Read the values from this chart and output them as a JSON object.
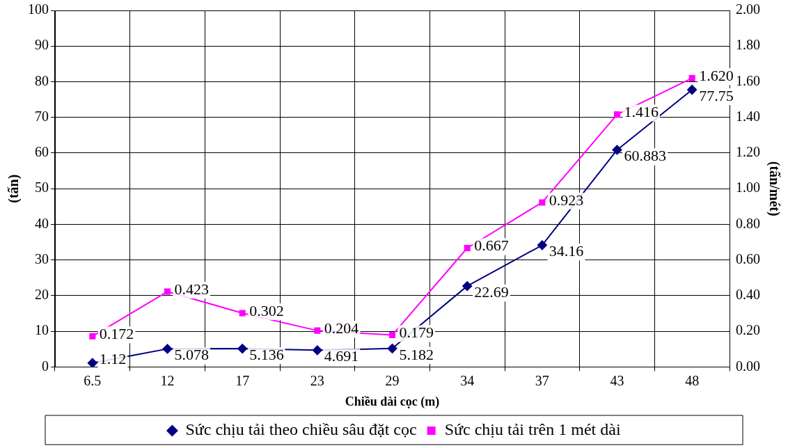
{
  "chart_data": {
    "type": "line",
    "xlabel": "Chiều dài cọc (m)",
    "ylabel": "(tấn)",
    "y2label": "(tấn/mét)",
    "categories": [
      "6.5",
      "12",
      "17",
      "23",
      "29",
      "34",
      "37",
      "43",
      "48"
    ],
    "series": [
      {
        "name": "Sức chịu tải theo chiều sâu đặt cọc",
        "color": "#000080",
        "marker": "diamond",
        "values": [
          1.12,
          5.078,
          5.136,
          4.691,
          5.182,
          22.69,
          34.16,
          60.883,
          77.75
        ],
        "value_labels": [
          "1.12",
          "5.078",
          "5.136",
          "4.691",
          "5.182",
          "22.69",
          "34.16",
          "60.883",
          "77.75"
        ]
      },
      {
        "name": "Sức chịu tải trên 1 mét dài",
        "color": "#ff00ff",
        "marker": "square",
        "axis": "y2",
        "values": [
          0.172,
          0.423,
          0.302,
          0.204,
          0.179,
          0.667,
          0.923,
          1.416,
          1.62
        ],
        "value_labels": [
          "0.172",
          "0.423",
          "0.302",
          "0.204",
          "0.179",
          "0.667",
          "0.923",
          "1.416",
          "1.620"
        ]
      }
    ],
    "ylim": [
      0,
      100
    ],
    "yticks": [
      0,
      10,
      20,
      30,
      40,
      50,
      60,
      70,
      80,
      90,
      100
    ],
    "y2lim": [
      0,
      2
    ],
    "y2ticks": [
      {
        "value": 0,
        "label": "0.00"
      },
      {
        "value": 0.2,
        "label": "0.20"
      },
      {
        "value": 0.4,
        "label": "0.40"
      },
      {
        "value": 0.6,
        "label": "0.60"
      },
      {
        "value": 0.8,
        "label": "0.80"
      },
      {
        "value": 1,
        "label": "1.00"
      },
      {
        "value": 1.2,
        "label": "1.20"
      },
      {
        "value": 1.4,
        "label": "1.40"
      },
      {
        "value": 1.6,
        "label": "1.60"
      },
      {
        "value": 1.8,
        "label": "1.80"
      },
      {
        "value": 2,
        "label": "2.00"
      }
    ],
    "grid": true,
    "legend": "bottom"
  }
}
